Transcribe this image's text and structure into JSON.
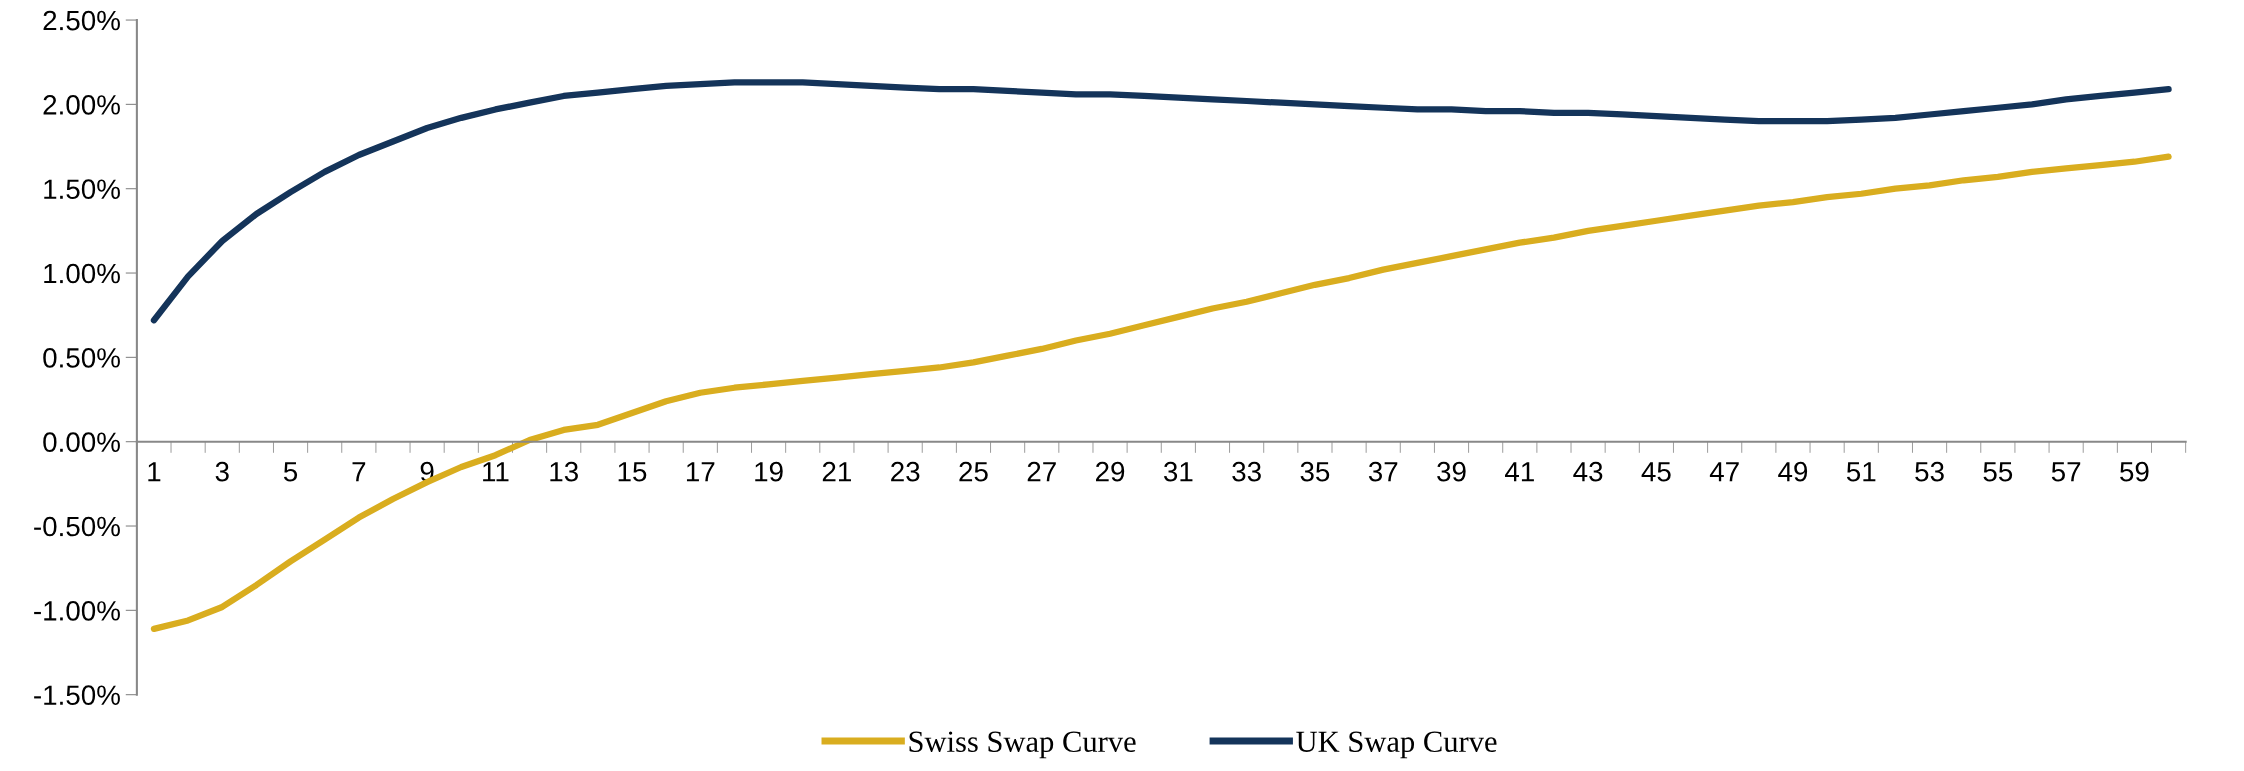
{
  "chart_data": {
    "type": "line",
    "categories": [
      "1",
      null,
      "3",
      null,
      "5",
      null,
      "7",
      null,
      "9",
      null,
      "11",
      null,
      "13",
      null,
      "15",
      null,
      "17",
      null,
      "19",
      null,
      "21",
      null,
      "23",
      null,
      "25",
      null,
      "27",
      null,
      "29",
      null,
      "31",
      null,
      "33",
      null,
      "35",
      null,
      "37",
      null,
      "39",
      null,
      "41",
      null,
      "43",
      null,
      "45",
      null,
      "47",
      null,
      "49",
      null,
      "51",
      null,
      "53",
      null,
      "55",
      null,
      "57",
      null,
      "59",
      null
    ],
    "series": [
      {
        "name": "Swiss Swap Curve",
        "color": "#d9ad1f",
        "values": [
          -1.11,
          -1.06,
          -0.98,
          -0.85,
          -0.71,
          -0.58,
          -0.45,
          -0.34,
          -0.24,
          -0.15,
          -0.08,
          0.01,
          0.07,
          0.1,
          0.17,
          0.24,
          0.29,
          0.32,
          0.34,
          0.36,
          0.38,
          0.4,
          0.42,
          0.44,
          0.47,
          0.51,
          0.55,
          0.6,
          0.64,
          0.69,
          0.74,
          0.79,
          0.83,
          0.88,
          0.93,
          0.97,
          1.02,
          1.06,
          1.1,
          1.14,
          1.18,
          1.21,
          1.25,
          1.28,
          1.31,
          1.34,
          1.37,
          1.4,
          1.42,
          1.45,
          1.47,
          1.5,
          1.52,
          1.55,
          1.57,
          1.6,
          1.62,
          1.64,
          1.66,
          1.69
        ]
      },
      {
        "name": "UK Swap Curve",
        "color": "#14345a",
        "values": [
          0.72,
          0.98,
          1.19,
          1.35,
          1.48,
          1.6,
          1.7,
          1.78,
          1.86,
          1.92,
          1.97,
          2.01,
          2.05,
          2.07,
          2.09,
          2.11,
          2.12,
          2.13,
          2.13,
          2.13,
          2.12,
          2.11,
          2.1,
          2.09,
          2.09,
          2.08,
          2.07,
          2.06,
          2.06,
          2.05,
          2.04,
          2.03,
          2.02,
          2.01,
          2.0,
          1.99,
          1.98,
          1.97,
          1.97,
          1.96,
          1.96,
          1.95,
          1.95,
          1.94,
          1.93,
          1.92,
          1.91,
          1.9,
          1.9,
          1.9,
          1.91,
          1.92,
          1.94,
          1.96,
          1.98,
          2.0,
          2.03,
          2.05,
          2.07,
          2.09
        ]
      }
    ],
    "ylim": [
      -1.5,
      2.5
    ],
    "yticks": [
      {
        "value": -1.5,
        "label": "-1.50%"
      },
      {
        "value": -1.0,
        "label": "-1.00%"
      },
      {
        "value": -0.5,
        "label": "-0.50%"
      },
      {
        "value": 0,
        "label": "0.00%"
      },
      {
        "value": 0.5,
        "label": "0.50%"
      },
      {
        "value": 1.0,
        "label": "1.00%"
      },
      {
        "value": 1.5,
        "label": "1.50%"
      },
      {
        "value": 2.0,
        "label": "2.00%"
      },
      {
        "value": 2.5,
        "label": "2.50%"
      }
    ],
    "grid": false,
    "legend": "bottom",
    "marker": "none",
    "line_style": "solid"
  }
}
